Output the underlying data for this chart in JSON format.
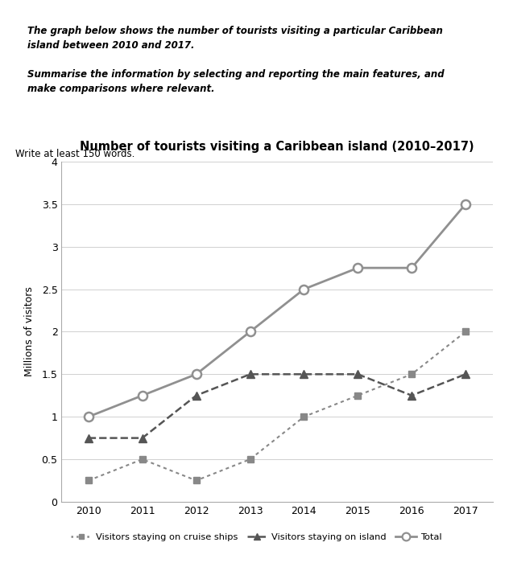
{
  "title": "Number of tourists visiting a Caribbean island (2010–2017)",
  "ylabel": "Millions of visitors",
  "years": [
    2010,
    2011,
    2012,
    2013,
    2014,
    2015,
    2016,
    2017
  ],
  "cruise_ships": [
    0.25,
    0.5,
    0.25,
    0.5,
    1.0,
    1.25,
    1.5,
    2.0
  ],
  "on_island": [
    0.75,
    0.75,
    1.25,
    1.5,
    1.5,
    1.5,
    1.25,
    1.5
  ],
  "total": [
    1.0,
    1.25,
    1.5,
    2.0,
    2.5,
    2.75,
    2.75,
    3.5
  ],
  "ylim": [
    0,
    4
  ],
  "yticks": [
    0,
    0.5,
    1.0,
    1.5,
    2.0,
    2.5,
    3.0,
    3.5,
    4.0
  ],
  "ytick_labels": [
    "0",
    "0.5",
    "1",
    "1.5",
    "2",
    "2.5",
    "3",
    "3.5",
    "4"
  ],
  "color_cruise": "#888888",
  "color_island": "#555555",
  "color_total": "#909090",
  "prompt_line1": "The graph below shows the number of tourists visiting a particular Caribbean",
  "prompt_line2": "island between 2010 and 2017.",
  "prompt_line3": "",
  "prompt_line4": "Summarise the information by selecting and reporting the main features, and",
  "prompt_line5": "make comparisons where relevant.",
  "write_text": "Write at least 150 words.",
  "box_facecolor": "#efefef",
  "box_edgecolor": "#aaaaaa",
  "legend_labels": [
    "Visitors staying on cruise ships",
    "Visitors staying on island",
    "Total"
  ]
}
